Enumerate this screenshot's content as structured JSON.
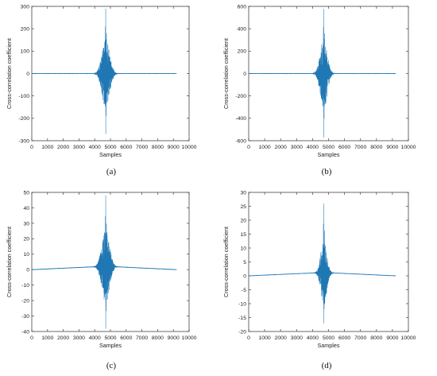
{
  "chart_data": [
    {
      "type": "line",
      "panel_label": "(a)",
      "xlabel": "Samples",
      "ylabel": "Cross-correlation coefficient",
      "xlim": [
        0,
        10000
      ],
      "ylim": [
        -300,
        300
      ],
      "xticks": [
        0,
        1000,
        2000,
        3000,
        4000,
        5000,
        6000,
        7000,
        8000,
        9000,
        10000
      ],
      "yticks": [
        -300,
        -200,
        -100,
        0,
        100,
        200,
        300
      ],
      "x_span": [
        0,
        9200
      ],
      "center": 4700,
      "peak_max": 290,
      "peak_min": -270,
      "burst_width": 900,
      "baseline": "flat",
      "color": "#1f77b4"
    },
    {
      "type": "line",
      "panel_label": "(b)",
      "xlabel": "Samples",
      "ylabel": "Cross-correlation coefficient",
      "xlim": [
        0,
        10000
      ],
      "ylim": [
        -600,
        600
      ],
      "xticks": [
        0,
        1000,
        2000,
        3000,
        4000,
        5000,
        6000,
        7000,
        8000,
        9000,
        10000
      ],
      "yticks": [
        -600,
        -400,
        -200,
        0,
        200,
        400,
        600
      ],
      "x_span": [
        0,
        9200
      ],
      "center": 4700,
      "peak_max": 575,
      "peak_min": -570,
      "burst_width": 800,
      "baseline": "flat",
      "color": "#1f77b4"
    },
    {
      "type": "line",
      "panel_label": "(c)",
      "xlabel": "Samples",
      "ylabel": "Cross-correlation coefficient",
      "xlim": [
        0,
        10000
      ],
      "ylim": [
        -40,
        50
      ],
      "xticks": [
        0,
        1000,
        2000,
        3000,
        4000,
        5000,
        6000,
        7000,
        8000,
        9000,
        10000
      ],
      "yticks": [
        -40,
        -30,
        -20,
        -10,
        0,
        10,
        20,
        30,
        40,
        50
      ],
      "x_span": [
        0,
        9200
      ],
      "center": 4700,
      "peak_max": 48,
      "peak_min": -38,
      "burst_width": 900,
      "baseline": "triangle",
      "baseline_peak": 2.2,
      "color": "#1f77b4"
    },
    {
      "type": "line",
      "panel_label": "(d)",
      "xlabel": "Samples",
      "ylabel": "Cross-correlation coefficient",
      "xlim": [
        0,
        10000
      ],
      "ylim": [
        -20,
        30
      ],
      "xticks": [
        0,
        1000,
        2000,
        3000,
        4000,
        5000,
        6000,
        7000,
        8000,
        9000,
        10000
      ],
      "yticks": [
        -20,
        -15,
        -10,
        -5,
        0,
        5,
        10,
        15,
        20,
        25,
        30
      ],
      "x_span": [
        0,
        9200
      ],
      "center": 4700,
      "peak_max": 26,
      "peak_min": -17,
      "burst_width": 700,
      "baseline": "triangle",
      "baseline_peak": 1.2,
      "color": "#1f77b4"
    }
  ]
}
